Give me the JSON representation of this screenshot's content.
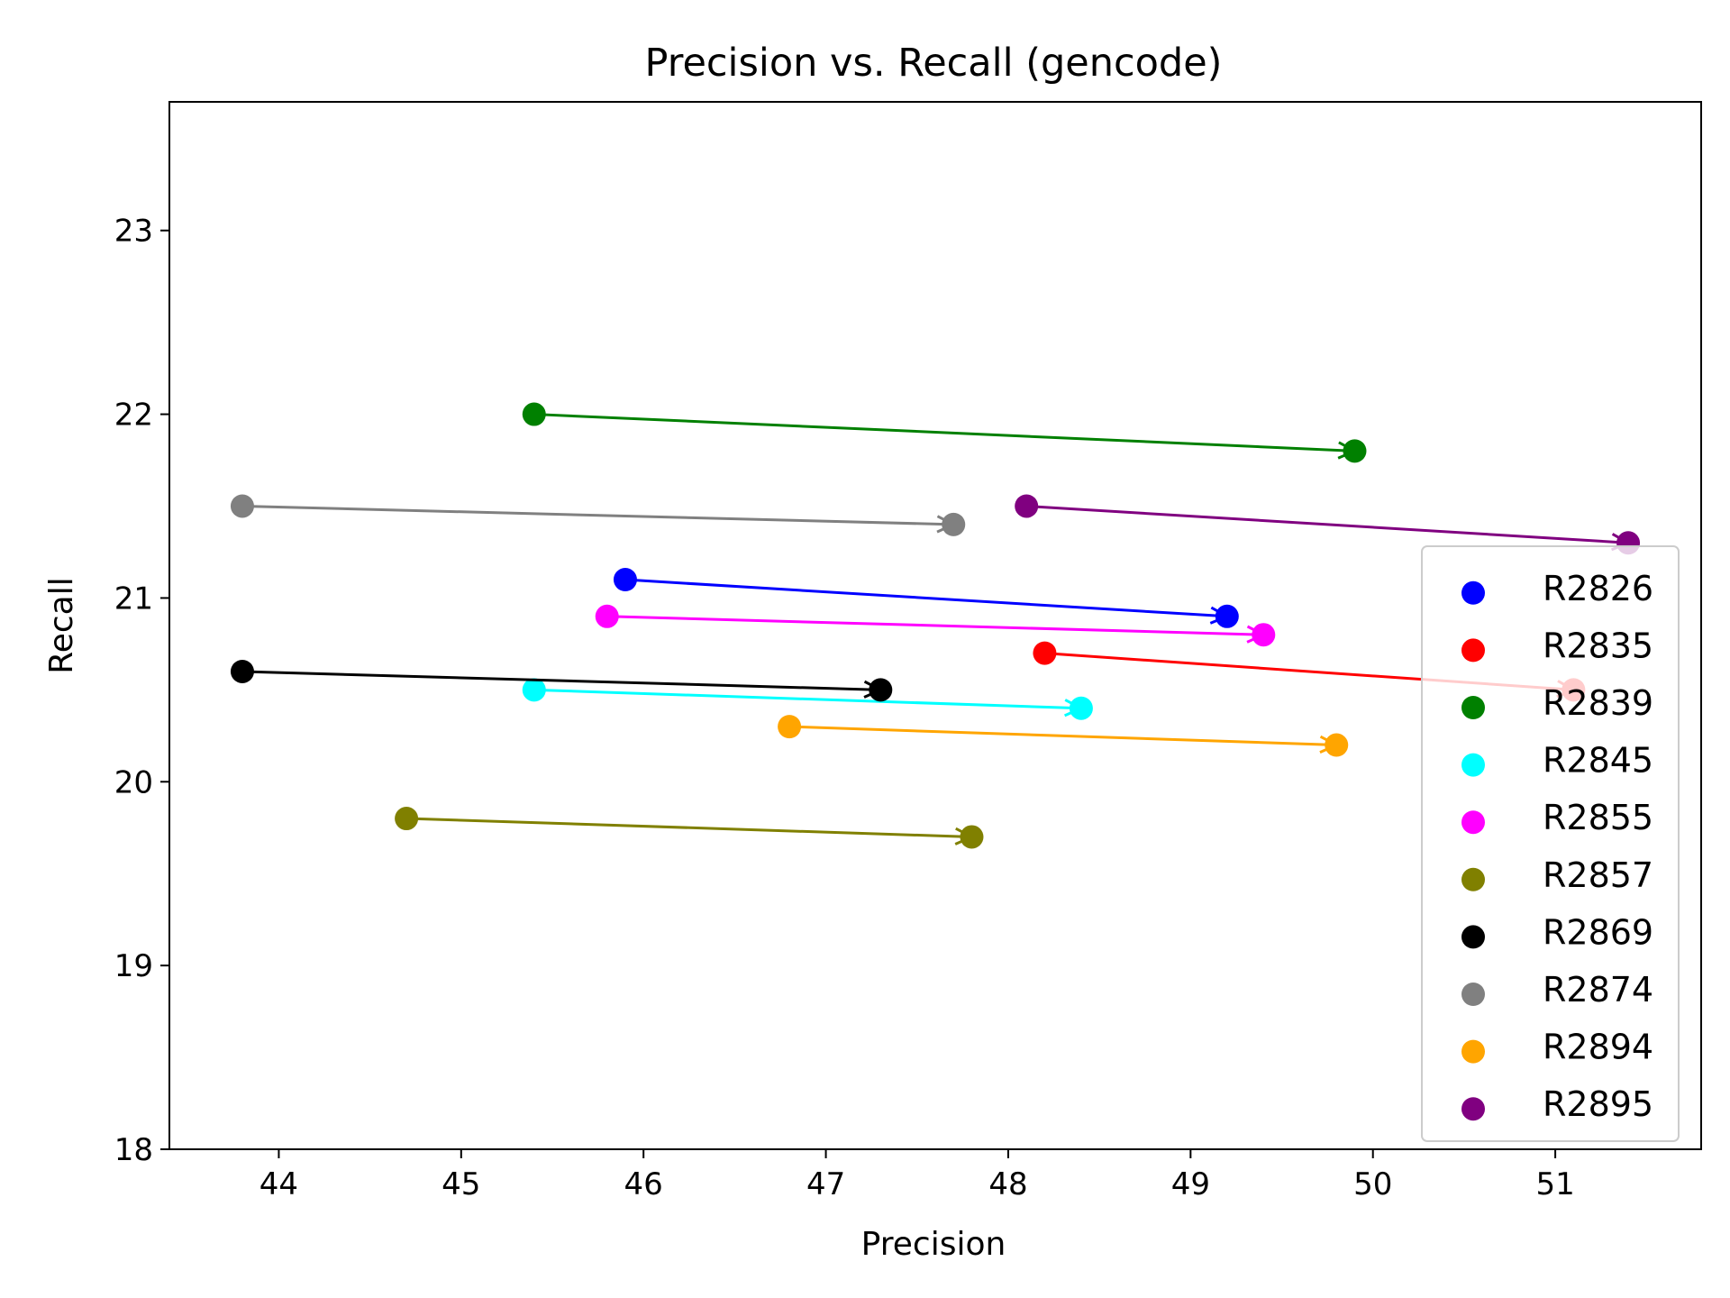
{
  "chart_data": {
    "type": "scatter",
    "title": "Precision vs. Recall (gencode)",
    "xlabel": "Precision",
    "ylabel": "Recall",
    "xlim": [
      43.4,
      51.8
    ],
    "ylim": [
      18,
      23.7
    ],
    "xticks": [
      44,
      45,
      46,
      47,
      48,
      49,
      50,
      51
    ],
    "yticks": [
      18,
      19,
      20,
      21,
      22,
      23
    ],
    "grid": false,
    "legend_position": "lower-right",
    "series": [
      {
        "name": "R2826",
        "color": "#0000ff",
        "start": [
          45.9,
          21.1
        ],
        "end": [
          49.2,
          20.9
        ]
      },
      {
        "name": "R2835",
        "color": "#ff0000",
        "start": [
          48.2,
          20.7
        ],
        "end": [
          51.1,
          20.5
        ]
      },
      {
        "name": "R2839",
        "color": "#008000",
        "start": [
          45.4,
          22.0
        ],
        "end": [
          49.9,
          21.8
        ]
      },
      {
        "name": "R2845",
        "color": "#00ffff",
        "start": [
          45.4,
          20.5
        ],
        "end": [
          48.4,
          20.4
        ]
      },
      {
        "name": "R2855",
        "color": "#ff00ff",
        "start": [
          45.8,
          20.9
        ],
        "end": [
          49.4,
          20.8
        ]
      },
      {
        "name": "R2857",
        "color": "#808000",
        "start": [
          44.7,
          19.8
        ],
        "end": [
          47.8,
          19.7
        ]
      },
      {
        "name": "R2869",
        "color": "#000000",
        "start": [
          43.8,
          20.6
        ],
        "end": [
          47.3,
          20.5
        ]
      },
      {
        "name": "R2874",
        "color": "#808080",
        "start": [
          43.8,
          21.5
        ],
        "end": [
          47.7,
          21.4
        ]
      },
      {
        "name": "R2894",
        "color": "#ffa500",
        "start": [
          46.8,
          20.3
        ],
        "end": [
          49.8,
          20.2
        ]
      },
      {
        "name": "R2895",
        "color": "#800080",
        "start": [
          48.1,
          21.5
        ],
        "end": [
          51.4,
          21.3
        ]
      }
    ]
  }
}
